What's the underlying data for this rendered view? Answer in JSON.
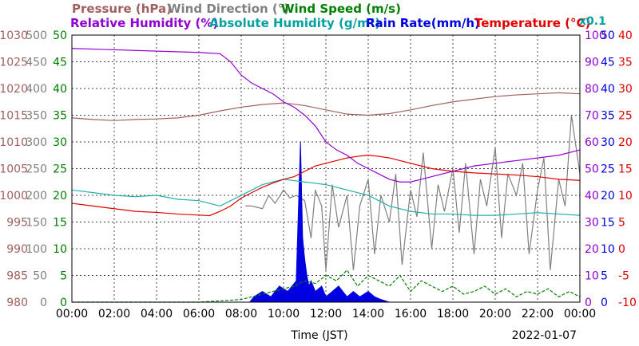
{
  "chart_data": {
    "type": "line",
    "date": "2022-01-07",
    "xlabel": "Time (JST)",
    "x_ticks": [
      "00:00",
      "02:00",
      "04:00",
      "06:00",
      "08:00",
      "10:00",
      "12:00",
      "14:00",
      "16:00",
      "18:00",
      "20:00",
      "22:00",
      "00:00"
    ],
    "x_range_hours": [
      0,
      24
    ],
    "grid": true,
    "axes": {
      "pressure": {
        "label": "Pressure (hPa)",
        "min": 980,
        "max": 1030,
        "ticks": [
          980,
          985,
          990,
          995,
          1000,
          1005,
          1010,
          1015,
          1020,
          1025,
          1030
        ],
        "color": "#a06060"
      },
      "wind_dir": {
        "label": "Wind Direction (°)",
        "min": 0,
        "max": 500,
        "ticks": [
          0,
          50,
          100,
          150,
          200,
          250,
          300,
          350,
          400,
          450,
          500
        ],
        "color": "#808080"
      },
      "wind_speed": {
        "label": "Wind Speed (m/s)",
        "min": 0,
        "max": 50,
        "ticks": [
          0,
          5,
          10,
          15,
          20,
          25,
          30,
          35,
          40,
          45,
          50
        ],
        "color": "#008000"
      },
      "rel_hum": {
        "label": "Relative Humidity (%)",
        "min": 0,
        "max": 100,
        "ticks": [
          0,
          10,
          20,
          30,
          40,
          50,
          60,
          70,
          80,
          90,
          100
        ],
        "color": "#9000d0"
      },
      "abs_hum": {
        "label": "Absolute Humidity (g/m³)",
        "multiplier": "x0.1",
        "color": "#00a0a0"
      },
      "rain_rate": {
        "label": "Rain Rate(mm/h)",
        "min": 0,
        "max": 50,
        "ticks": [
          0,
          5,
          10,
          15,
          20,
          25,
          30,
          35,
          40,
          45,
          50
        ],
        "color": "#0000e0"
      },
      "temperature": {
        "label": "Temperature (°C)",
        "min": -10,
        "max": 40,
        "ticks": [
          -10,
          -5,
          0,
          5,
          10,
          15,
          20,
          25,
          30,
          35,
          40
        ],
        "color": "#e00000"
      }
    },
    "series": [
      {
        "name": "Relative Humidity (%)",
        "axis": "rel_hum",
        "color": "#9000d0",
        "x": [
          0,
          2,
          4,
          6,
          7,
          7.5,
          8,
          8.5,
          9,
          9.5,
          10,
          10.5,
          11,
          11.5,
          12,
          12.5,
          13,
          13.5,
          14,
          14.5,
          15,
          15.5,
          16,
          16.5,
          17,
          18,
          19,
          20,
          21,
          22,
          23,
          24
        ],
        "y": [
          95,
          94.5,
          94,
          93.5,
          93,
          90,
          85,
          82,
          80,
          78,
          75,
          73,
          70,
          66,
          60,
          57,
          55,
          52,
          50,
          48,
          46,
          45,
          45,
          46,
          47,
          49,
          51,
          52,
          53,
          54,
          55,
          57
        ]
      },
      {
        "name": "Absolute Humidity (g/m³)",
        "axis": "rel_hum",
        "color": "#20b0b0",
        "x": [
          0,
          1,
          2,
          3,
          4,
          5,
          6,
          7,
          7.5,
          8,
          8.5,
          9,
          9.5,
          10,
          10.5,
          11,
          11.5,
          12,
          12.5,
          13,
          13.5,
          14,
          14.5,
          15,
          16,
          17,
          18,
          19,
          20,
          21,
          22,
          23,
          24
        ],
        "y": [
          42,
          41,
          40,
          39.5,
          40,
          38.5,
          38,
          36,
          38,
          40,
          42,
          44,
          45,
          46,
          45.5,
          45,
          44.5,
          44,
          43,
          42,
          41,
          40,
          38,
          36,
          34,
          33,
          33,
          32.5,
          32.5,
          33,
          33.5,
          33,
          32.5
        ]
      },
      {
        "name": "Pressure (hPa)",
        "axis": "pressure",
        "color": "#a06060",
        "x": [
          0,
          1,
          2,
          3,
          4,
          5,
          6,
          7,
          8,
          9,
          10,
          11,
          12,
          13,
          14,
          15,
          16,
          17,
          18,
          19,
          20,
          21,
          22,
          23,
          24
        ],
        "y": [
          1014.5,
          1014.2,
          1014,
          1014.2,
          1014.3,
          1014.5,
          1015,
          1015.8,
          1016.5,
          1017,
          1017.3,
          1016.8,
          1016,
          1015.2,
          1015,
          1015.3,
          1016,
          1016.8,
          1017.5,
          1018,
          1018.5,
          1018.8,
          1019,
          1019.2,
          1019
        ]
      },
      {
        "name": "Temperature (°C)",
        "axis": "temperature",
        "color": "#e00000",
        "x": [
          0,
          1,
          2,
          3,
          4,
          5,
          6,
          6.5,
          7,
          7.5,
          8,
          8.5,
          9,
          9.5,
          10,
          10.5,
          11,
          11.5,
          12,
          12.5,
          13,
          13.5,
          14,
          14.5,
          15,
          15.5,
          16,
          17,
          18,
          19,
          20,
          21,
          22,
          23,
          24
        ],
        "y": [
          8.5,
          8,
          7.5,
          7,
          6.8,
          6.5,
          6.3,
          6.2,
          7,
          8,
          9.5,
          10.5,
          11.5,
          12.3,
          13,
          13.5,
          14.5,
          15.5,
          16,
          16.5,
          17,
          17.3,
          17.5,
          17.3,
          17,
          16.5,
          16,
          15,
          14.5,
          14.2,
          14,
          13.8,
          13.5,
          13,
          12.8
        ]
      },
      {
        "name": "Wind Direction (°)",
        "axis": "wind_dir",
        "color": "#808080",
        "x": [
          8.2,
          8.5,
          9,
          9.3,
          9.6,
          10,
          10.3,
          10.6,
          11,
          11.3,
          11.5,
          11.8,
          12,
          12.3,
          12.6,
          13,
          13.3,
          13.6,
          14,
          14.3,
          14.6,
          15,
          15.3,
          15.6,
          16,
          16.3,
          16.6,
          17,
          17.3,
          17.6,
          18,
          18.3,
          18.6,
          19,
          19.3,
          19.6,
          20,
          20.3,
          20.6,
          21,
          21.3,
          21.6,
          22,
          22.3,
          22.6,
          23,
          23.3,
          23.6,
          24
        ],
        "y": [
          180,
          180,
          175,
          200,
          185,
          210,
          195,
          200,
          190,
          120,
          210,
          180,
          60,
          220,
          140,
          200,
          60,
          180,
          230,
          90,
          200,
          150,
          240,
          70,
          210,
          160,
          280,
          100,
          220,
          170,
          250,
          130,
          260,
          90,
          230,
          180,
          290,
          120,
          240,
          200,
          260,
          90,
          210,
          270,
          60,
          230,
          180,
          350,
          240
        ]
      },
      {
        "name": "Wind Speed (m/s)",
        "axis": "wind_speed",
        "color": "#008000",
        "x": [
          0,
          6,
          8,
          8.5,
          9,
          9.5,
          10,
          10.5,
          11,
          11.5,
          12,
          12.5,
          13,
          13.5,
          14,
          14.5,
          15,
          15.5,
          16,
          16.5,
          17,
          17.5,
          18,
          18.5,
          19,
          19.5,
          20,
          20.5,
          21,
          21.5,
          22,
          22.5,
          23,
          23.5,
          24
        ],
        "y": [
          0,
          0,
          0.5,
          1,
          1.5,
          2,
          2.5,
          3,
          4,
          3.5,
          5,
          4,
          6,
          3,
          5,
          4,
          3,
          5,
          2,
          4,
          3,
          2,
          3,
          1.5,
          2,
          3,
          1.5,
          2.5,
          1,
          2,
          1.5,
          2.5,
          1,
          2,
          1
        ]
      },
      {
        "name": "Rain Rate(mm/h)",
        "axis": "rain_rate",
        "color": "#0000e0",
        "fill": true,
        "x": [
          0,
          8.4,
          8.6,
          9,
          9.4,
          9.8,
          10.2,
          10.6,
          10.8,
          10.9,
          11,
          11.1,
          11.2,
          11.3,
          11.5,
          11.8,
          12,
          12.3,
          12.6,
          13,
          13.3,
          13.6,
          14,
          14.3,
          14.6,
          15,
          24
        ],
        "y": [
          0,
          0,
          1,
          2,
          1,
          3,
          2,
          4,
          30,
          12,
          8,
          5,
          3,
          4,
          2,
          3,
          1,
          2,
          3,
          1,
          2,
          1,
          2,
          1,
          0.5,
          0,
          0
        ]
      }
    ]
  }
}
